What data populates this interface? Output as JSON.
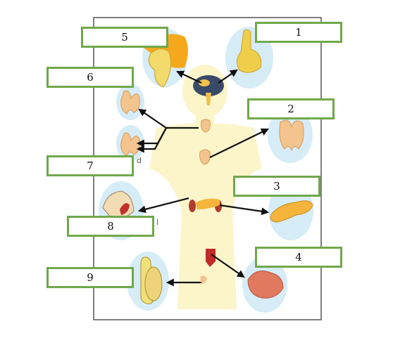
{
  "colors": {
    "box_border": "#70a84a",
    "arrow": "#111111",
    "body_silhouette": "#fbf5c9",
    "organ_backdrop": "#d6ecf7"
  },
  "labels": [
    {
      "id": "1",
      "text": "1"
    },
    {
      "id": "2",
      "text": "2"
    },
    {
      "id": "3",
      "text": "3"
    },
    {
      "id": "4",
      "text": "4"
    },
    {
      "id": "5",
      "text": "5"
    },
    {
      "id": "6",
      "text": "6"
    },
    {
      "id": "7",
      "text": "7"
    },
    {
      "id": "8",
      "text": "8"
    },
    {
      "id": "9",
      "text": "9"
    }
  ],
  "residual_letters": {
    "thyroid_fragment": "d",
    "adrenal_fragment": "l"
  }
}
